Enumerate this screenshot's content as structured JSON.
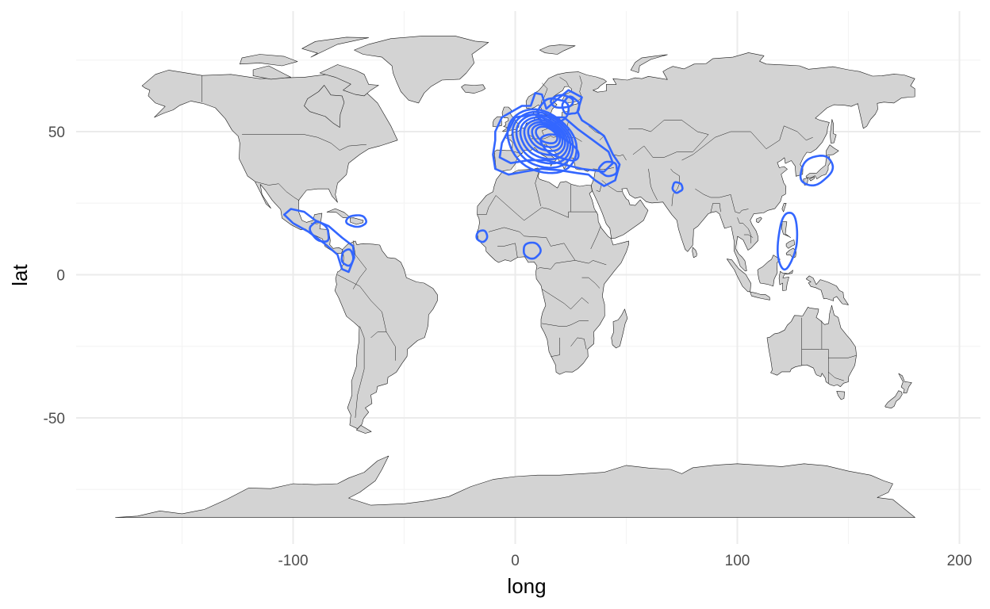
{
  "colors": {
    "land": "#d3d3d3",
    "border": "#1a1a1a",
    "contour": "#3366ff",
    "grid": "#ebebeb",
    "tick_text": "#4d4d4d"
  },
  "chart_data": {
    "type": "map",
    "projection": "equirectangular",
    "xlabel": "long",
    "ylabel": "lat",
    "xlim": [
      -190,
      210
    ],
    "ylim": [
      -92,
      86
    ],
    "x_ticks": [
      -100,
      0,
      100,
      200
    ],
    "x_tick_labels": [
      "-100",
      "0",
      "100",
      "200"
    ],
    "y_ticks": [
      -50,
      0,
      50
    ],
    "y_tick_labels": [
      "-50",
      "0",
      "50"
    ],
    "grid": true,
    "legend": "none",
    "layers": [
      "world country polygons (grey fill, dark outline)",
      "2-D density contours of point locations (blue lines)"
    ],
    "density_clusters": [
      {
        "region": "Europe",
        "center": [
          12,
          48
        ],
        "contour_levels": 9
      },
      {
        "region": "Eastern Mediterranean / Turkey",
        "center": [
          35,
          38
        ],
        "contour_levels": 1
      },
      {
        "region": "Central America / Mexico",
        "center": [
          -90,
          16
        ],
        "contour_levels": 2
      },
      {
        "region": "Caribbean",
        "center": [
          -71,
          19
        ],
        "contour_levels": 1
      },
      {
        "region": "Colombia",
        "center": [
          -75,
          6
        ],
        "contour_levels": 1
      },
      {
        "region": "West Africa (Senegal)",
        "center": [
          -15,
          13
        ],
        "contour_levels": 1
      },
      {
        "region": "Nigeria",
        "center": [
          7,
          8
        ],
        "contour_levels": 1
      },
      {
        "region": "Northern India",
        "center": [
          73,
          31
        ],
        "contour_levels": 1
      },
      {
        "region": "Japan",
        "center": [
          136,
          36
        ],
        "contour_levels": 1
      },
      {
        "region": "Philippines",
        "center": [
          122,
          12
        ],
        "contour_levels": 1
      }
    ]
  }
}
